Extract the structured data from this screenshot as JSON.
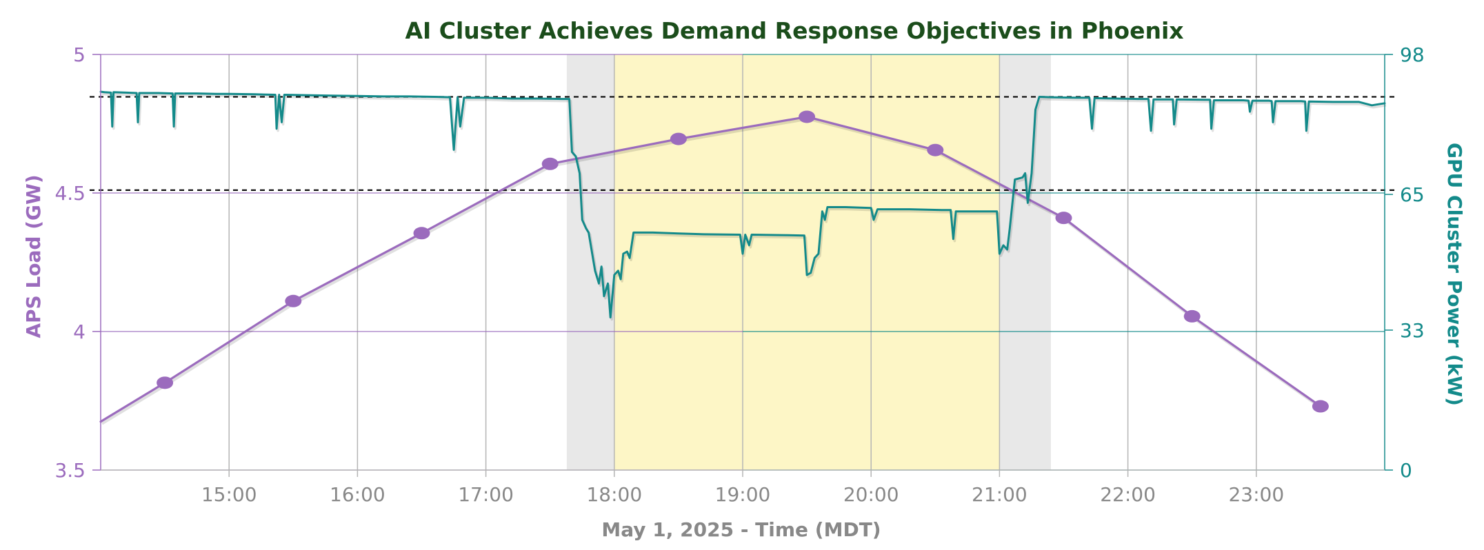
{
  "chart_data": {
    "type": "line",
    "title": "AI Cluster Achieves Demand Response Objectives in Phoenix",
    "xlabel": "May 1, 2025 - Time (MDT)",
    "ylabel_left": "APS Load  (GW)",
    "ylabel_right": "GPU Cluster Power (kW)",
    "x_range_hours": [
      14.0,
      24.0
    ],
    "x_ticks": [
      "15:00",
      "16:00",
      "17:00",
      "18:00",
      "19:00",
      "20:00",
      "21:00",
      "22:00",
      "23:00"
    ],
    "ylim_left": [
      3.5,
      5.0
    ],
    "yticks_left": [
      "3.5",
      "4",
      "4.5",
      "5"
    ],
    "ylim_right": [
      0,
      98
    ],
    "yticks_right": [
      "0",
      "33",
      "65",
      "98"
    ],
    "grid": true,
    "shaded_regions": [
      {
        "kind": "ramp",
        "start": 17.63,
        "end": 18.0,
        "color": "#e8e8e8"
      },
      {
        "kind": "event",
        "start": 18.0,
        "end": 21.0,
        "color": "#fdf6c6"
      },
      {
        "kind": "ramp",
        "start": 21.0,
        "end": 21.4,
        "color": "#e8e8e8"
      }
    ],
    "reference_lines_right": [
      88,
      66
    ],
    "series": [
      {
        "axis": "left",
        "color": "#9b6bbd",
        "markers": true,
        "points": [
          [
            14.0,
            3.675
          ],
          [
            14.5,
            3.815
          ],
          [
            15.5,
            4.11
          ],
          [
            16.5,
            4.355
          ],
          [
            17.5,
            4.605
          ],
          [
            18.5,
            4.695
          ],
          [
            19.5,
            4.775
          ],
          [
            20.5,
            4.655
          ],
          [
            21.5,
            4.41
          ],
          [
            22.5,
            4.055
          ],
          [
            23.5,
            3.73
          ]
        ],
        "marker_points": [
          [
            14.5,
            3.815
          ],
          [
            15.5,
            4.11
          ],
          [
            16.5,
            4.355
          ],
          [
            17.5,
            4.605
          ],
          [
            18.5,
            4.695
          ],
          [
            19.5,
            4.775
          ],
          [
            20.5,
            4.655
          ],
          [
            21.5,
            4.41
          ],
          [
            22.5,
            4.055
          ],
          [
            23.5,
            3.73
          ]
        ]
      },
      {
        "axis": "right",
        "color": "#138a8a",
        "markers": false,
        "points": [
          [
            14.0,
            89.2
          ],
          [
            14.03,
            89.1
          ],
          [
            14.08,
            89.0
          ],
          [
            14.09,
            81.0
          ],
          [
            14.1,
            89.1
          ],
          [
            14.2,
            89.0
          ],
          [
            14.28,
            88.9
          ],
          [
            14.29,
            82.0
          ],
          [
            14.3,
            88.9
          ],
          [
            14.45,
            88.9
          ],
          [
            14.56,
            88.8
          ],
          [
            14.57,
            81.0
          ],
          [
            14.58,
            88.8
          ],
          [
            14.75,
            88.8
          ],
          [
            14.9,
            88.7
          ],
          [
            15.0,
            88.7
          ],
          [
            15.2,
            88.6
          ],
          [
            15.36,
            88.5
          ],
          [
            15.37,
            80.5
          ],
          [
            15.39,
            88.5
          ],
          [
            15.41,
            82.0
          ],
          [
            15.43,
            88.5
          ],
          [
            15.6,
            88.4
          ],
          [
            15.8,
            88.3
          ],
          [
            16.0,
            88.2
          ],
          [
            16.2,
            88.1
          ],
          [
            16.4,
            88.1
          ],
          [
            16.6,
            88.0
          ],
          [
            16.72,
            87.9
          ],
          [
            16.75,
            75.5
          ],
          [
            16.78,
            87.9
          ],
          [
            16.8,
            81.0
          ],
          [
            16.83,
            87.8
          ],
          [
            17.0,
            87.8
          ],
          [
            17.2,
            87.6
          ],
          [
            17.4,
            87.6
          ],
          [
            17.6,
            87.5
          ],
          [
            17.65,
            87.5
          ],
          [
            17.67,
            75.0
          ],
          [
            17.7,
            74.0
          ],
          [
            17.73,
            70.0
          ],
          [
            17.75,
            59.0
          ],
          [
            17.78,
            57.0
          ],
          [
            17.8,
            56.0
          ],
          [
            17.85,
            47.0
          ],
          [
            17.88,
            44.0
          ],
          [
            17.9,
            48.0
          ],
          [
            17.92,
            41.0
          ],
          [
            17.95,
            44.0
          ],
          [
            17.97,
            36.0
          ],
          [
            18.0,
            46.0
          ],
          [
            18.03,
            47.0
          ],
          [
            18.05,
            45.0
          ],
          [
            18.07,
            51.0
          ],
          [
            18.1,
            51.5
          ],
          [
            18.12,
            50.0
          ],
          [
            18.15,
            56.0
          ],
          [
            18.3,
            56.0
          ],
          [
            18.5,
            55.8
          ],
          [
            18.7,
            55.6
          ],
          [
            18.98,
            55.5
          ],
          [
            19.0,
            51.0
          ],
          [
            19.02,
            55.5
          ],
          [
            19.05,
            53.0
          ],
          [
            19.07,
            55.5
          ],
          [
            19.3,
            55.4
          ],
          [
            19.48,
            55.3
          ],
          [
            19.5,
            46.0
          ],
          [
            19.53,
            46.5
          ],
          [
            19.56,
            50.0
          ],
          [
            19.59,
            51.0
          ],
          [
            19.62,
            61.0
          ],
          [
            19.64,
            59.0
          ],
          [
            19.66,
            62.0
          ],
          [
            19.8,
            62.0
          ],
          [
            20.0,
            61.8
          ],
          [
            20.02,
            59.0
          ],
          [
            20.05,
            61.5
          ],
          [
            20.3,
            61.5
          ],
          [
            20.55,
            61.3
          ],
          [
            20.62,
            61.3
          ],
          [
            20.64,
            54.5
          ],
          [
            20.66,
            61.0
          ],
          [
            20.8,
            61.0
          ],
          [
            20.98,
            61.0
          ],
          [
            21.0,
            51.0
          ],
          [
            21.03,
            53.0
          ],
          [
            21.06,
            52.0
          ],
          [
            21.08,
            57.0
          ],
          [
            21.12,
            68.5
          ],
          [
            21.18,
            69.0
          ],
          [
            21.2,
            70.0
          ],
          [
            21.22,
            63.0
          ],
          [
            21.25,
            70.0
          ],
          [
            21.28,
            85.0
          ],
          [
            21.31,
            88.0
          ],
          [
            21.4,
            87.9
          ],
          [
            21.6,
            87.8
          ],
          [
            21.7,
            87.8
          ],
          [
            21.72,
            80.5
          ],
          [
            21.74,
            87.7
          ],
          [
            21.9,
            87.6
          ],
          [
            22.1,
            87.5
          ],
          [
            22.16,
            87.5
          ],
          [
            22.18,
            80.0
          ],
          [
            22.2,
            87.4
          ],
          [
            22.35,
            87.4
          ],
          [
            22.36,
            81.5
          ],
          [
            22.38,
            87.4
          ],
          [
            22.6,
            87.3
          ],
          [
            22.64,
            87.3
          ],
          [
            22.65,
            80.5
          ],
          [
            22.67,
            87.2
          ],
          [
            22.9,
            87.2
          ],
          [
            22.94,
            87.1
          ],
          [
            22.95,
            84.5
          ],
          [
            22.97,
            87.1
          ],
          [
            23.1,
            87.1
          ],
          [
            23.12,
            87.0
          ],
          [
            23.13,
            82.0
          ],
          [
            23.15,
            87.0
          ],
          [
            23.35,
            87.0
          ],
          [
            23.38,
            86.9
          ],
          [
            23.39,
            80.0
          ],
          [
            23.41,
            86.9
          ],
          [
            23.6,
            86.8
          ],
          [
            23.8,
            86.8
          ],
          [
            23.9,
            86.0
          ],
          [
            24.0,
            86.5
          ]
        ]
      }
    ],
    "colors": {
      "title": "#1b4d1b",
      "left_axis": "#9b6bbd",
      "right_axis": "#138a8a",
      "xlabel": "#888888",
      "grid": "#b5b5b5"
    }
  }
}
